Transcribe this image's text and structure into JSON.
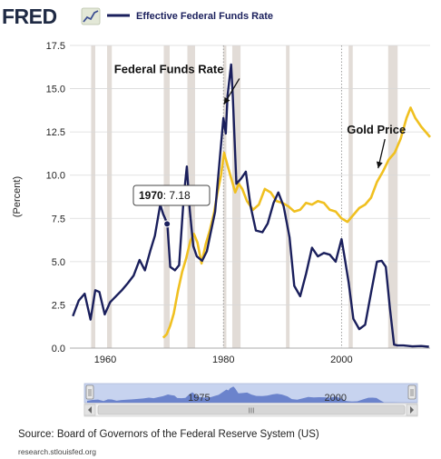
{
  "header": {
    "logo": "FRED",
    "legend_label": "Effective Federal Funds Rate"
  },
  "footer": {
    "source": "Source: Board of Governors of the Federal Reserve System (US)",
    "url": "research.stlouisfed.org"
  },
  "navigator": {
    "labels": [
      {
        "year": 1975,
        "text": "1975"
      },
      {
        "year": 2000,
        "text": "2000"
      }
    ],
    "grip": "III"
  },
  "colors": {
    "rate": "#1a1f5c",
    "gold": "#f0c020",
    "recession": "#e2dcd7",
    "grid": "#d9d9d9",
    "nav_fill": "#5a74c6",
    "nav_bg": "#c7d3ef"
  },
  "chart_data": {
    "type": "line",
    "ylabel": "(Percent)",
    "xlim": [
      1954,
      2015
    ],
    "ylim": [
      0,
      17.5
    ],
    "yticks": [
      {
        "v": 0,
        "label": "0.0"
      },
      {
        "v": 2.5,
        "label": "2.5"
      },
      {
        "v": 5,
        "label": "5.0"
      },
      {
        "v": 7.5,
        "label": "7.5"
      },
      {
        "v": 10,
        "label": "10.0"
      },
      {
        "v": 12.5,
        "label": "12.5"
      },
      {
        "v": 15,
        "label": "15.0"
      },
      {
        "v": 17.5,
        "label": "17.5"
      }
    ],
    "xticks": [
      {
        "v": 1960,
        "label": "1960"
      },
      {
        "v": 1980,
        "label": "1980"
      },
      {
        "v": 2000,
        "label": "2000"
      }
    ],
    "grid": true,
    "recessions": [
      [
        1957.6,
        1958.3
      ],
      [
        1960.3,
        1961.1
      ],
      [
        1969.9,
        1970.9
      ],
      [
        1973.9,
        1975.2
      ],
      [
        1980.0,
        1980.5
      ],
      [
        1981.5,
        1982.9
      ],
      [
        1990.6,
        1991.2
      ],
      [
        2001.2,
        2001.9
      ],
      [
        2007.9,
        2009.5
      ]
    ],
    "series": [
      {
        "name": "Effective Federal Funds Rate",
        "x": [
          1954.5,
          1955.5,
          1956.5,
          1957.5,
          1958.3,
          1959.0,
          1959.9,
          1960.8,
          1961.8,
          1962.8,
          1963.8,
          1964.8,
          1965.8,
          1966.7,
          1967.6,
          1968.4,
          1969.3,
          1969.8,
          1970.5,
          1971.0,
          1971.8,
          1972.5,
          1973.3,
          1973.8,
          1974.3,
          1974.9,
          1975.5,
          1976.4,
          1977.2,
          1977.8,
          1978.6,
          1979.4,
          1980.0,
          1980.4,
          1980.7,
          1981.0,
          1981.3,
          1981.6,
          1982.2,
          1983.0,
          1983.8,
          1984.6,
          1985.5,
          1986.6,
          1987.5,
          1988.5,
          1989.3,
          1990.2,
          1991.2,
          1992.0,
          1993.0,
          1994.0,
          1995.0,
          1996.0,
          1997.0,
          1998.0,
          1999.0,
          2000.0,
          2000.5,
          2001.2,
          2002.0,
          2003.0,
          2004.0,
          2005.0,
          2006.0,
          2006.8,
          2007.5,
          2008.2,
          2008.9,
          2009.5,
          2010.5,
          2012.0,
          2013.5,
          2014.8
        ],
        "y": [
          1.85,
          2.75,
          3.15,
          1.65,
          3.35,
          3.25,
          1.95,
          2.65,
          3.0,
          3.35,
          3.75,
          4.2,
          5.1,
          4.5,
          5.6,
          6.5,
          8.3,
          7.75,
          7.2,
          4.7,
          4.5,
          4.8,
          8.8,
          10.5,
          8.0,
          5.9,
          5.3,
          5.05,
          5.6,
          6.6,
          7.9,
          11.0,
          13.3,
          12.4,
          14.6,
          15.5,
          16.4,
          14.5,
          9.5,
          9.8,
          10.2,
          8.2,
          6.8,
          6.7,
          7.2,
          8.4,
          9.0,
          8.2,
          6.4,
          3.6,
          3.0,
          4.3,
          5.8,
          5.3,
          5.5,
          5.4,
          5.0,
          6.3,
          5.3,
          3.8,
          1.7,
          1.1,
          1.35,
          3.2,
          5.0,
          5.05,
          4.7,
          2.3,
          0.2,
          0.15,
          0.15,
          0.1,
          0.12,
          0.08
        ]
      },
      {
        "name": "Gold Price",
        "x": [
          1969.8,
          1970.4,
          1971.0,
          1971.6,
          1972.3,
          1973.0,
          1973.7,
          1974.4,
          1975.0,
          1975.6,
          1976.3,
          1977.0,
          1977.7,
          1978.4,
          1979.0,
          1979.6,
          1980.1,
          1980.5,
          1981.0,
          1981.5,
          1982.0,
          1982.6,
          1983.2,
          1984.0,
          1985.0,
          1986.0,
          1987.0,
          1988.0,
          1989.0,
          1990.0,
          1991.0,
          1992.0,
          1993.0,
          1994.0,
          1995.0,
          1996.0,
          1997.0,
          1998.0,
          1999.0,
          2000.0,
          2001.0,
          2002.0,
          2003.0,
          2004.0,
          2005.0,
          2006.0,
          2007.0,
          2008.0,
          2009.0,
          2010.0,
          2011.0,
          2011.7,
          2012.5,
          2013.5,
          2014.5,
          2015.0
        ],
        "y": [
          0.6,
          0.8,
          1.3,
          2.0,
          3.3,
          4.4,
          5.2,
          6.2,
          6.6,
          6.1,
          4.9,
          6.0,
          6.8,
          7.8,
          9.0,
          10.0,
          11.3,
          10.8,
          10.2,
          9.6,
          9.0,
          9.5,
          9.2,
          8.5,
          8.0,
          8.3,
          9.2,
          9.0,
          8.5,
          8.4,
          8.2,
          7.9,
          8.0,
          8.4,
          8.3,
          8.5,
          8.4,
          8.0,
          7.9,
          7.5,
          7.3,
          7.7,
          8.1,
          8.3,
          8.7,
          9.6,
          10.2,
          10.9,
          11.3,
          12.1,
          13.3,
          13.9,
          13.3,
          12.8,
          12.4,
          12.2
        ]
      }
    ],
    "annotations": [
      {
        "text": "Federal Funds Rate",
        "x": 1961.5,
        "y": 15.9,
        "arrow_to": [
          1980.1,
          14.1
        ]
      },
      {
        "text": "Gold Price",
        "x": 2000.9,
        "y": 12.4,
        "arrow_to": [
          2006.2,
          10.4
        ]
      }
    ],
    "tooltip": {
      "year_label": "1970",
      "value_label": ": 7.18",
      "x": 1970.0,
      "y": 7.18
    }
  }
}
